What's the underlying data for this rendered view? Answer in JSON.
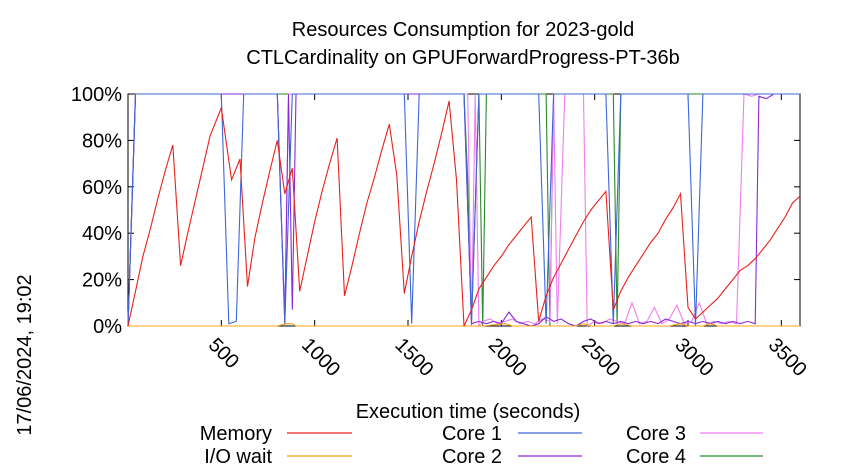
{
  "chart_data": {
    "type": "line",
    "title": "Resources Consumption for 2023-gold",
    "subtitle": "CTLCardinality on GPUForwardProgress-PT-36b",
    "xlabel": "Execution time (seconds)",
    "ylabel": "",
    "timestamp": "17/06/2024, 19:02",
    "xlim": [
      0,
      3600
    ],
    "ylim": [
      0,
      100
    ],
    "x_ticks": [
      500,
      1000,
      1500,
      2000,
      2500,
      3000,
      3500
    ],
    "x_tick_labels": [
      "500",
      "1000",
      "1500",
      "2000",
      "2500",
      "3000",
      "3500"
    ],
    "y_ticks": [
      0,
      20,
      40,
      60,
      80,
      100
    ],
    "y_tick_labels": [
      "0%",
      "20%",
      "40%",
      "60%",
      "80%",
      "100%"
    ],
    "legend_position": "bottom",
    "series": [
      {
        "name": "Memory",
        "color": "#e8201c",
        "points": [
          [
            0,
            0
          ],
          [
            40,
            15
          ],
          [
            80,
            30
          ],
          [
            120,
            42
          ],
          [
            160,
            55
          ],
          [
            200,
            67
          ],
          [
            240,
            78
          ],
          [
            282,
            26
          ],
          [
            320,
            40
          ],
          [
            360,
            54
          ],
          [
            400,
            68
          ],
          [
            440,
            82
          ],
          [
            500,
            94
          ],
          [
            555,
            63
          ],
          [
            600,
            72
          ],
          [
            640,
            17
          ],
          [
            680,
            38
          ],
          [
            720,
            53
          ],
          [
            760,
            67
          ],
          [
            800,
            80
          ],
          [
            840,
            57
          ],
          [
            880,
            68
          ],
          [
            920,
            15
          ],
          [
            960,
            30
          ],
          [
            1000,
            45
          ],
          [
            1040,
            58
          ],
          [
            1080,
            70
          ],
          [
            1120,
            81
          ],
          [
            1160,
            13
          ],
          [
            1200,
            26
          ],
          [
            1240,
            40
          ],
          [
            1280,
            53
          ],
          [
            1320,
            64
          ],
          [
            1360,
            76
          ],
          [
            1400,
            87
          ],
          [
            1440,
            65
          ],
          [
            1480,
            14
          ],
          [
            1520,
            30
          ],
          [
            1560,
            45
          ],
          [
            1600,
            58
          ],
          [
            1640,
            70
          ],
          [
            1680,
            83
          ],
          [
            1720,
            97
          ],
          [
            1760,
            63
          ],
          [
            1800,
            0
          ],
          [
            1840,
            7
          ],
          [
            1880,
            16
          ],
          [
            1920,
            21
          ],
          [
            1960,
            26
          ],
          [
            2000,
            30
          ],
          [
            2040,
            35
          ],
          [
            2080,
            39
          ],
          [
            2120,
            43
          ],
          [
            2160,
            47
          ],
          [
            2200,
            2
          ],
          [
            2240,
            13
          ],
          [
            2280,
            21
          ],
          [
            2320,
            27
          ],
          [
            2360,
            33
          ],
          [
            2400,
            39
          ],
          [
            2440,
            45
          ],
          [
            2480,
            50
          ],
          [
            2520,
            54
          ],
          [
            2560,
            58
          ],
          [
            2600,
            7
          ],
          [
            2640,
            15
          ],
          [
            2680,
            21
          ],
          [
            2720,
            26
          ],
          [
            2760,
            31
          ],
          [
            2800,
            36
          ],
          [
            2840,
            40
          ],
          [
            2880,
            46
          ],
          [
            2920,
            51
          ],
          [
            2960,
            57
          ],
          [
            3000,
            8
          ],
          [
            3040,
            3
          ],
          [
            3080,
            6
          ],
          [
            3120,
            9
          ],
          [
            3160,
            12
          ],
          [
            3200,
            16
          ],
          [
            3240,
            20
          ],
          [
            3280,
            24
          ],
          [
            3320,
            26
          ],
          [
            3360,
            29
          ],
          [
            3400,
            33
          ],
          [
            3440,
            37
          ],
          [
            3480,
            42
          ],
          [
            3520,
            47
          ],
          [
            3560,
            53
          ],
          [
            3600,
            56
          ]
        ]
      },
      {
        "name": "I/O wait",
        "color": "#f6a410",
        "points": [
          [
            0,
            0
          ],
          [
            800,
            0
          ],
          [
            850,
            1
          ],
          [
            880,
            1
          ],
          [
            900,
            0
          ],
          [
            1900,
            0
          ],
          [
            2020,
            1
          ],
          [
            2060,
            0
          ],
          [
            2400,
            0
          ],
          [
            2440,
            1
          ],
          [
            2480,
            0
          ],
          [
            2600,
            0
          ],
          [
            2640,
            1
          ],
          [
            2700,
            0
          ],
          [
            2900,
            0
          ],
          [
            2960,
            1
          ],
          [
            3000,
            0
          ],
          [
            3080,
            0
          ],
          [
            3120,
            1
          ],
          [
            3160,
            0
          ],
          [
            3600,
            0
          ]
        ]
      },
      {
        "name": "Core 1",
        "color": "#3d66d8",
        "points": [
          [
            0,
            0
          ],
          [
            40,
            100
          ],
          [
            500,
            100
          ],
          [
            540,
            1
          ],
          [
            580,
            2
          ],
          [
            620,
            100
          ],
          [
            800,
            100
          ],
          [
            840,
            1
          ],
          [
            880,
            100
          ],
          [
            1480,
            100
          ],
          [
            1520,
            1
          ],
          [
            1560,
            100
          ],
          [
            1800,
            100
          ],
          [
            1840,
            2
          ],
          [
            1880,
            100
          ],
          [
            2200,
            100
          ],
          [
            2240,
            1
          ],
          [
            2280,
            100
          ],
          [
            2560,
            100
          ],
          [
            2600,
            1
          ],
          [
            2640,
            100
          ],
          [
            3000,
            100
          ],
          [
            3040,
            0
          ],
          [
            3080,
            100
          ],
          [
            3600,
            100
          ]
        ]
      },
      {
        "name": "Core 2",
        "color": "#8a2bd6",
        "points": [
          [
            0,
            0
          ],
          [
            40,
            100
          ],
          [
            800,
            100
          ],
          [
            840,
            1
          ],
          [
            860,
            100
          ],
          [
            880,
            7
          ],
          [
            900,
            100
          ],
          [
            1800,
            100
          ],
          [
            1840,
            1
          ],
          [
            1880,
            2
          ],
          [
            1920,
            1
          ],
          [
            1960,
            2
          ],
          [
            2000,
            1
          ],
          [
            2040,
            6
          ],
          [
            2080,
            2
          ],
          [
            2120,
            1
          ],
          [
            2160,
            0
          ],
          [
            2200,
            1
          ],
          [
            2240,
            4
          ],
          [
            2280,
            2
          ],
          [
            2320,
            3
          ],
          [
            2360,
            1
          ],
          [
            2400,
            0
          ],
          [
            2440,
            2
          ],
          [
            2480,
            3
          ],
          [
            2520,
            1
          ],
          [
            2560,
            2
          ],
          [
            2600,
            1
          ],
          [
            2640,
            2
          ],
          [
            2680,
            1
          ],
          [
            2720,
            2
          ],
          [
            2760,
            1
          ],
          [
            2800,
            2
          ],
          [
            2840,
            1
          ],
          [
            2880,
            3
          ],
          [
            2920,
            2
          ],
          [
            2960,
            1
          ],
          [
            3000,
            2
          ],
          [
            3040,
            1
          ],
          [
            3080,
            2
          ],
          [
            3120,
            1
          ],
          [
            3160,
            2
          ],
          [
            3200,
            1
          ],
          [
            3240,
            2
          ],
          [
            3280,
            1
          ],
          [
            3320,
            2
          ],
          [
            3360,
            1
          ],
          [
            3380,
            99
          ],
          [
            3420,
            98
          ],
          [
            3440,
            99
          ],
          [
            3460,
            100
          ],
          [
            3600,
            100
          ]
        ]
      },
      {
        "name": "Core 3",
        "color": "#f07ef0",
        "points": [
          [
            0,
            0
          ],
          [
            40,
            100
          ],
          [
            800,
            100
          ],
          [
            840,
            3
          ],
          [
            860,
            100
          ],
          [
            1820,
            100
          ],
          [
            1840,
            0
          ],
          [
            1860,
            100
          ],
          [
            1880,
            0
          ],
          [
            1900,
            2
          ],
          [
            1940,
            3
          ],
          [
            1980,
            1
          ],
          [
            2020,
            2
          ],
          [
            2060,
            3
          ],
          [
            2100,
            1
          ],
          [
            2140,
            2
          ],
          [
            2180,
            1
          ],
          [
            2220,
            3
          ],
          [
            2260,
            2
          ],
          [
            2280,
            100
          ],
          [
            2300,
            1
          ],
          [
            2340,
            100
          ],
          [
            2440,
            100
          ],
          [
            2460,
            0
          ],
          [
            2500,
            2
          ],
          [
            2540,
            1
          ],
          [
            2580,
            3
          ],
          [
            2620,
            2
          ],
          [
            2660,
            1
          ],
          [
            2700,
            10
          ],
          [
            2740,
            1
          ],
          [
            2780,
            2
          ],
          [
            2820,
            8
          ],
          [
            2860,
            1
          ],
          [
            2900,
            3
          ],
          [
            2940,
            9
          ],
          [
            2980,
            1
          ],
          [
            3020,
            2
          ],
          [
            3060,
            10
          ],
          [
            3100,
            1
          ],
          [
            3140,
            2
          ],
          [
            3180,
            1
          ],
          [
            3220,
            2
          ],
          [
            3260,
            1
          ],
          [
            3300,
            100
          ],
          [
            3340,
            99
          ],
          [
            3380,
            100
          ],
          [
            3600,
            100
          ]
        ]
      },
      {
        "name": "Core 4",
        "color": "#2a8a2a",
        "points": [
          [
            0,
            0
          ],
          [
            40,
            100
          ],
          [
            1800,
            100
          ],
          [
            1820,
            63
          ],
          [
            1840,
            1
          ],
          [
            1880,
            100
          ],
          [
            1900,
            0
          ],
          [
            1920,
            100
          ],
          [
            2240,
            100
          ],
          [
            2260,
            0
          ],
          [
            2280,
            100
          ],
          [
            2600,
            100
          ],
          [
            2620,
            1
          ],
          [
            2640,
            100
          ],
          [
            3600,
            100
          ]
        ]
      }
    ]
  }
}
